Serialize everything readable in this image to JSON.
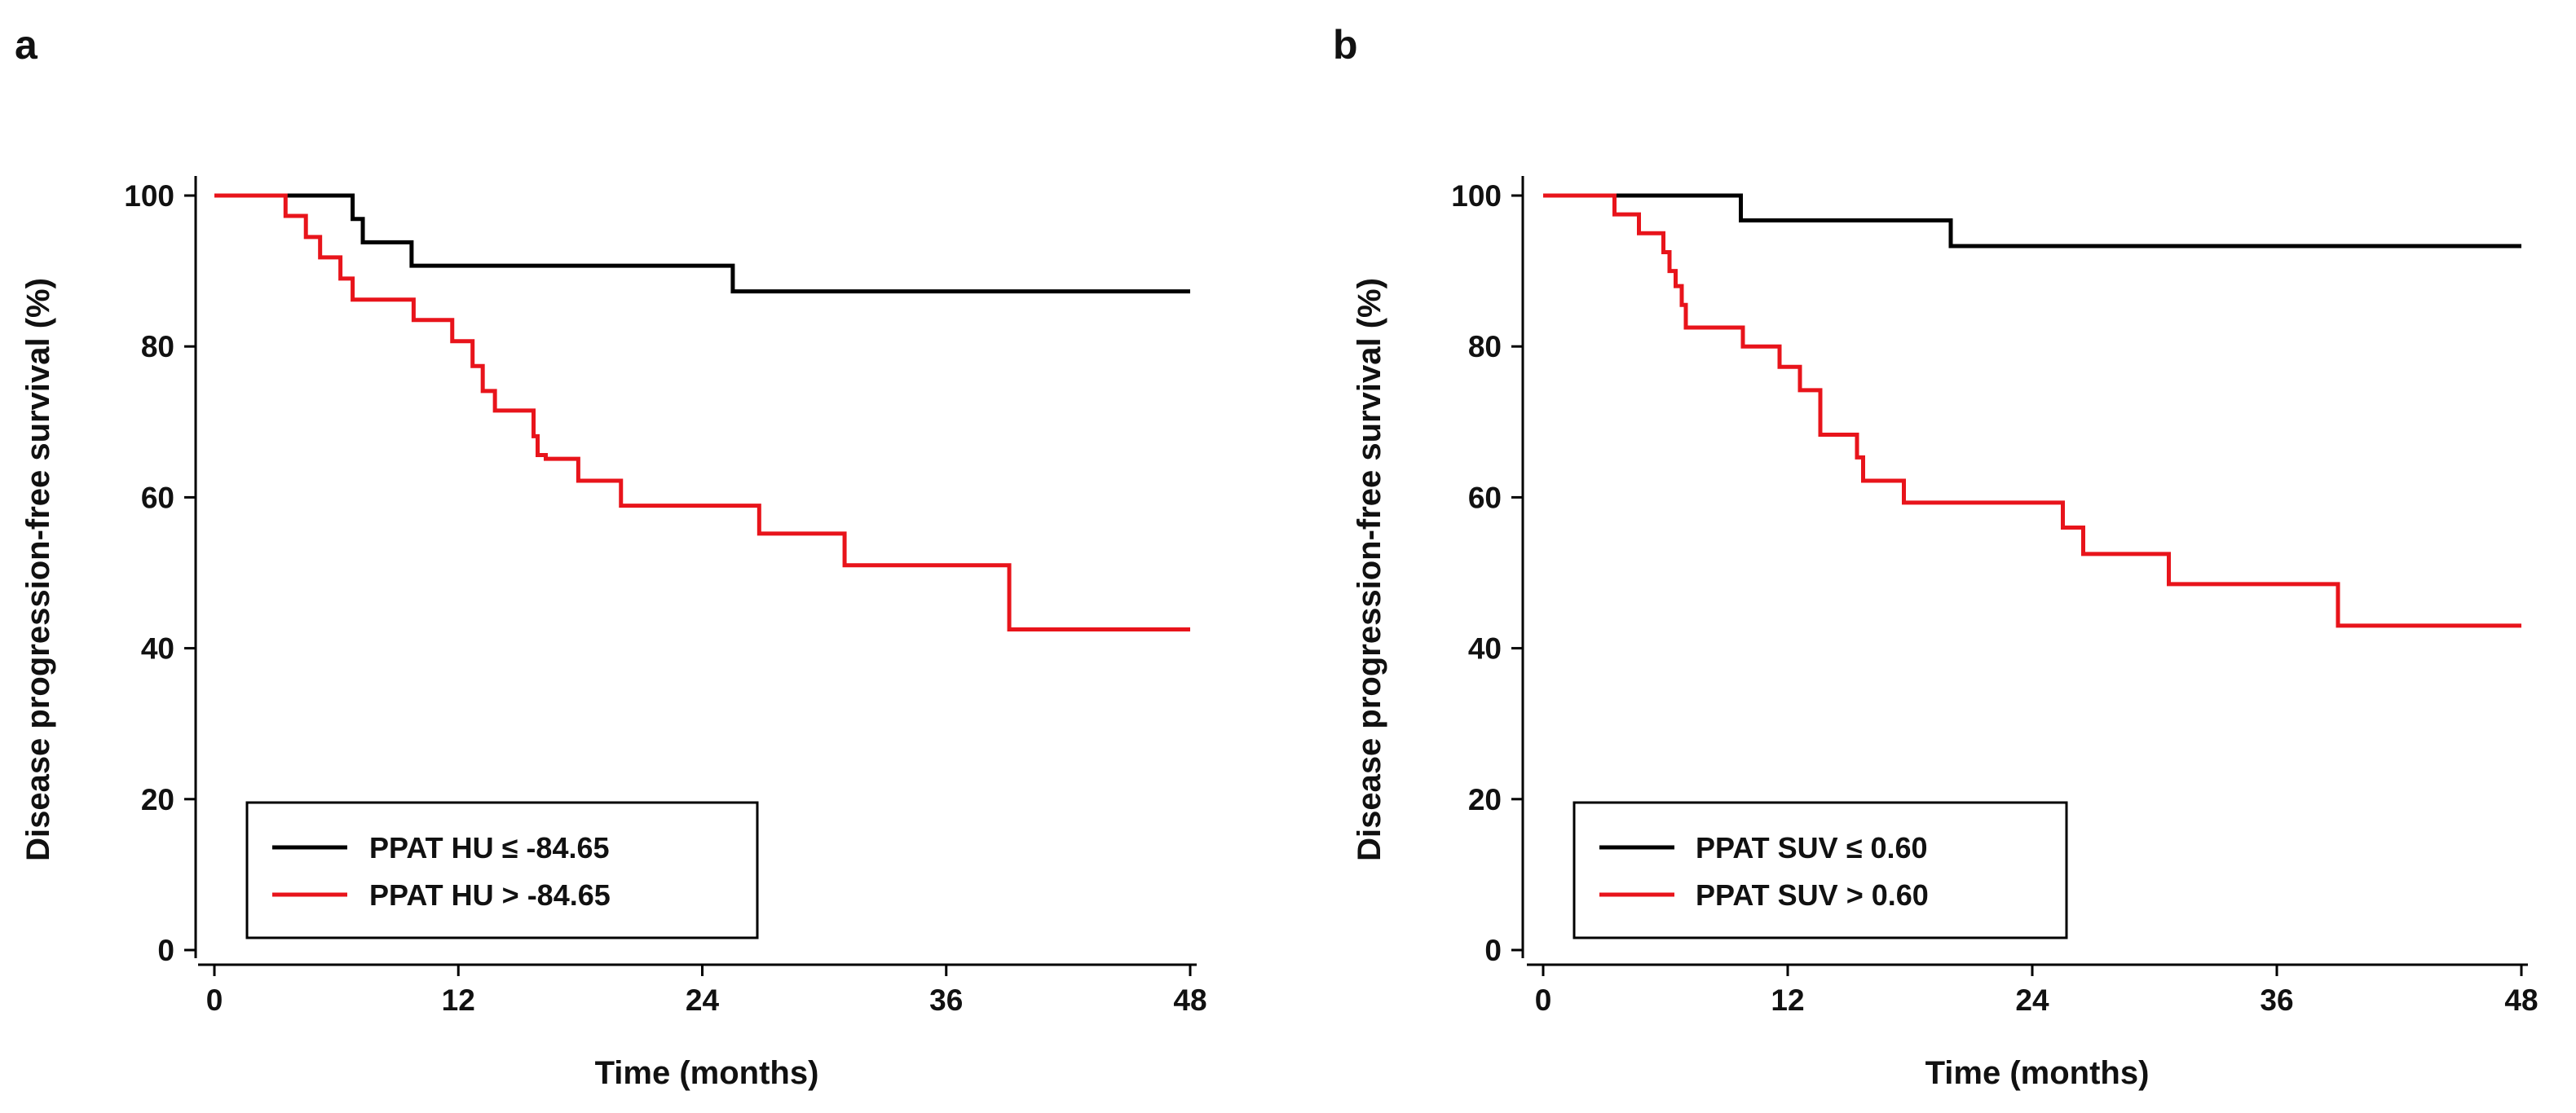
{
  "chart_data": [
    {
      "type": "line",
      "panel_label": "a",
      "xlabel": "Time (months)",
      "ylabel": "Disease progression-free survival (%)",
      "xlim": [
        0,
        48
      ],
      "ylim": [
        0,
        100
      ],
      "xticks": [
        0,
        12,
        24,
        36,
        48
      ],
      "yticks": [
        0,
        20,
        40,
        60,
        80,
        100
      ],
      "xtick_labels": [
        "0",
        "12",
        "24",
        "36",
        "48"
      ],
      "ytick_labels": [
        "0",
        "20",
        "40",
        "60",
        "80",
        "100"
      ],
      "grid": false,
      "legend_position": "bottom-left",
      "series": [
        {
          "name": "PPAT HU ≤ -84.65",
          "color": "#000000",
          "step": true,
          "x": [
            0,
            6.8,
            7.3,
            9.7,
            25.5,
            48
          ],
          "y": [
            100,
            96.9,
            93.8,
            90.7,
            87.3,
            87.3
          ]
        },
        {
          "name": "PPAT HU > -84.65",
          "color": "#e8141b",
          "step": true,
          "x": [
            0,
            3.5,
            4.5,
            5.2,
            6.2,
            6.8,
            9.8,
            11.7,
            12.7,
            13.2,
            13.8,
            15.7,
            15.9,
            16.3,
            17.9,
            20,
            26.8,
            31,
            39.1,
            48
          ],
          "y": [
            100,
            97.3,
            94.5,
            91.8,
            89,
            86.2,
            83.5,
            80.7,
            77.4,
            74.1,
            71.5,
            68.1,
            65.6,
            65.1,
            62.2,
            58.9,
            55.2,
            51,
            42.5,
            42.5
          ]
        }
      ]
    },
    {
      "type": "line",
      "panel_label": "b",
      "xlabel": "Time (months)",
      "ylabel": "Disease progression-free survival (%)",
      "xlim": [
        0,
        48
      ],
      "ylim": [
        0,
        100
      ],
      "xticks": [
        0,
        12,
        24,
        36,
        48
      ],
      "yticks": [
        0,
        20,
        40,
        60,
        80,
        100
      ],
      "xtick_labels": [
        "0",
        "12",
        "24",
        "36",
        "48"
      ],
      "ytick_labels": [
        "0",
        "20",
        "40",
        "60",
        "80",
        "100"
      ],
      "grid": false,
      "legend_position": "bottom-left",
      "series": [
        {
          "name": "PPAT SUV ≤ 0.60",
          "color": "#000000",
          "step": true,
          "x": [
            0,
            9.7,
            20,
            48
          ],
          "y": [
            100,
            96.7,
            93.3,
            93.3
          ]
        },
        {
          "name": "PPAT SUV > 0.60",
          "color": "#e8141b",
          "step": true,
          "x": [
            0,
            3.5,
            4.7,
            5.9,
            6.2,
            6.5,
            6.8,
            7,
            9.8,
            11.6,
            12.6,
            13.6,
            15.4,
            15.7,
            17.7,
            25.5,
            26.5,
            30.7,
            39,
            48
          ],
          "y": [
            100,
            97.5,
            95,
            92.5,
            90,
            88,
            85.5,
            82.5,
            80,
            77.3,
            74.2,
            68.3,
            65.3,
            62.2,
            59.3,
            56,
            52.5,
            48.5,
            43,
            43
          ]
        }
      ]
    }
  ]
}
